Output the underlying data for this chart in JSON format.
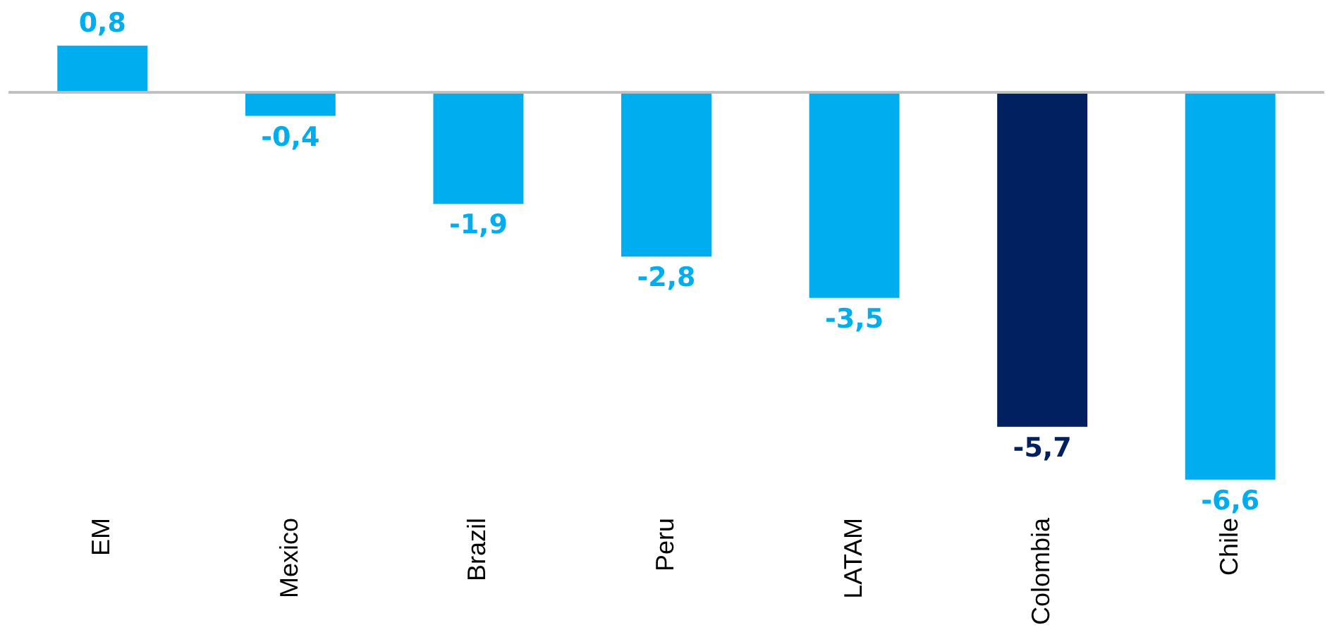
{
  "chart_data": {
    "type": "bar",
    "categories": [
      "EM",
      "Mexico",
      "Brazil",
      "Peru",
      "LATAM",
      "Colombia",
      "Chile"
    ],
    "values": [
      0.8,
      -0.4,
      -1.9,
      -2.8,
      -3.5,
      -5.7,
      -6.6
    ],
    "colors": [
      "#00aeef",
      "#00aeef",
      "#00aeef",
      "#00aeef",
      "#00aeef",
      "#002060",
      "#00aeef"
    ],
    "value_labels": [
      "0,8",
      "-0,4",
      "-1,9",
      "-2,8",
      "-3,5",
      "-5,7",
      "-6,6"
    ],
    "tick_labels": "x"
  }
}
